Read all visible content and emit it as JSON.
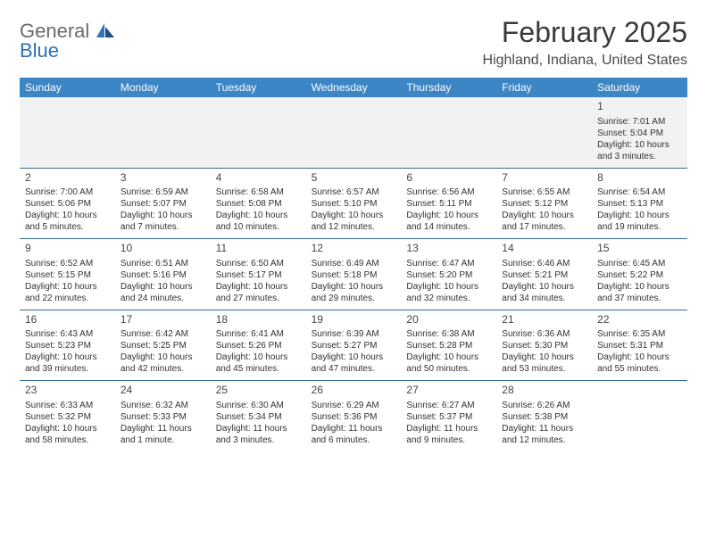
{
  "brand": {
    "word1": "General",
    "word2": "Blue"
  },
  "title": "February 2025",
  "location": "Highland, Indiana, United States",
  "colors": {
    "header_bg": "#3c86c6",
    "header_text": "#ffffff",
    "row_border": "#3a6a9a",
    "alt_row_bg": "#f2f2f2",
    "brand_gray": "#6a6a6a",
    "brand_blue": "#2e6fb5"
  },
  "weekdays": [
    "Sunday",
    "Monday",
    "Tuesday",
    "Wednesday",
    "Thursday",
    "Friday",
    "Saturday"
  ],
  "rows": [
    {
      "bg": "light",
      "cells": [
        null,
        null,
        null,
        null,
        null,
        null,
        {
          "day": "1",
          "sunrise": "Sunrise: 7:01 AM",
          "sunset": "Sunset: 5:04 PM",
          "daylight": "Daylight: 10 hours and 3 minutes."
        }
      ]
    },
    {
      "bg": "none",
      "cells": [
        {
          "day": "2",
          "sunrise": "Sunrise: 7:00 AM",
          "sunset": "Sunset: 5:06 PM",
          "daylight": "Daylight: 10 hours and 5 minutes."
        },
        {
          "day": "3",
          "sunrise": "Sunrise: 6:59 AM",
          "sunset": "Sunset: 5:07 PM",
          "daylight": "Daylight: 10 hours and 7 minutes."
        },
        {
          "day": "4",
          "sunrise": "Sunrise: 6:58 AM",
          "sunset": "Sunset: 5:08 PM",
          "daylight": "Daylight: 10 hours and 10 minutes."
        },
        {
          "day": "5",
          "sunrise": "Sunrise: 6:57 AM",
          "sunset": "Sunset: 5:10 PM",
          "daylight": "Daylight: 10 hours and 12 minutes."
        },
        {
          "day": "6",
          "sunrise": "Sunrise: 6:56 AM",
          "sunset": "Sunset: 5:11 PM",
          "daylight": "Daylight: 10 hours and 14 minutes."
        },
        {
          "day": "7",
          "sunrise": "Sunrise: 6:55 AM",
          "sunset": "Sunset: 5:12 PM",
          "daylight": "Daylight: 10 hours and 17 minutes."
        },
        {
          "day": "8",
          "sunrise": "Sunrise: 6:54 AM",
          "sunset": "Sunset: 5:13 PM",
          "daylight": "Daylight: 10 hours and 19 minutes."
        }
      ]
    },
    {
      "bg": "none",
      "cells": [
        {
          "day": "9",
          "sunrise": "Sunrise: 6:52 AM",
          "sunset": "Sunset: 5:15 PM",
          "daylight": "Daylight: 10 hours and 22 minutes."
        },
        {
          "day": "10",
          "sunrise": "Sunrise: 6:51 AM",
          "sunset": "Sunset: 5:16 PM",
          "daylight": "Daylight: 10 hours and 24 minutes."
        },
        {
          "day": "11",
          "sunrise": "Sunrise: 6:50 AM",
          "sunset": "Sunset: 5:17 PM",
          "daylight": "Daylight: 10 hours and 27 minutes."
        },
        {
          "day": "12",
          "sunrise": "Sunrise: 6:49 AM",
          "sunset": "Sunset: 5:18 PM",
          "daylight": "Daylight: 10 hours and 29 minutes."
        },
        {
          "day": "13",
          "sunrise": "Sunrise: 6:47 AM",
          "sunset": "Sunset: 5:20 PM",
          "daylight": "Daylight: 10 hours and 32 minutes."
        },
        {
          "day": "14",
          "sunrise": "Sunrise: 6:46 AM",
          "sunset": "Sunset: 5:21 PM",
          "daylight": "Daylight: 10 hours and 34 minutes."
        },
        {
          "day": "15",
          "sunrise": "Sunrise: 6:45 AM",
          "sunset": "Sunset: 5:22 PM",
          "daylight": "Daylight: 10 hours and 37 minutes."
        }
      ]
    },
    {
      "bg": "none",
      "cells": [
        {
          "day": "16",
          "sunrise": "Sunrise: 6:43 AM",
          "sunset": "Sunset: 5:23 PM",
          "daylight": "Daylight: 10 hours and 39 minutes."
        },
        {
          "day": "17",
          "sunrise": "Sunrise: 6:42 AM",
          "sunset": "Sunset: 5:25 PM",
          "daylight": "Daylight: 10 hours and 42 minutes."
        },
        {
          "day": "18",
          "sunrise": "Sunrise: 6:41 AM",
          "sunset": "Sunset: 5:26 PM",
          "daylight": "Daylight: 10 hours and 45 minutes."
        },
        {
          "day": "19",
          "sunrise": "Sunrise: 6:39 AM",
          "sunset": "Sunset: 5:27 PM",
          "daylight": "Daylight: 10 hours and 47 minutes."
        },
        {
          "day": "20",
          "sunrise": "Sunrise: 6:38 AM",
          "sunset": "Sunset: 5:28 PM",
          "daylight": "Daylight: 10 hours and 50 minutes."
        },
        {
          "day": "21",
          "sunrise": "Sunrise: 6:36 AM",
          "sunset": "Sunset: 5:30 PM",
          "daylight": "Daylight: 10 hours and 53 minutes."
        },
        {
          "day": "22",
          "sunrise": "Sunrise: 6:35 AM",
          "sunset": "Sunset: 5:31 PM",
          "daylight": "Daylight: 10 hours and 55 minutes."
        }
      ]
    },
    {
      "bg": "none",
      "cells": [
        {
          "day": "23",
          "sunrise": "Sunrise: 6:33 AM",
          "sunset": "Sunset: 5:32 PM",
          "daylight": "Daylight: 10 hours and 58 minutes."
        },
        {
          "day": "24",
          "sunrise": "Sunrise: 6:32 AM",
          "sunset": "Sunset: 5:33 PM",
          "daylight": "Daylight: 11 hours and 1 minute."
        },
        {
          "day": "25",
          "sunrise": "Sunrise: 6:30 AM",
          "sunset": "Sunset: 5:34 PM",
          "daylight": "Daylight: 11 hours and 3 minutes."
        },
        {
          "day": "26",
          "sunrise": "Sunrise: 6:29 AM",
          "sunset": "Sunset: 5:36 PM",
          "daylight": "Daylight: 11 hours and 6 minutes."
        },
        {
          "day": "27",
          "sunrise": "Sunrise: 6:27 AM",
          "sunset": "Sunset: 5:37 PM",
          "daylight": "Daylight: 11 hours and 9 minutes."
        },
        {
          "day": "28",
          "sunrise": "Sunrise: 6:26 AM",
          "sunset": "Sunset: 5:38 PM",
          "daylight": "Daylight: 11 hours and 12 minutes."
        },
        null
      ]
    }
  ]
}
